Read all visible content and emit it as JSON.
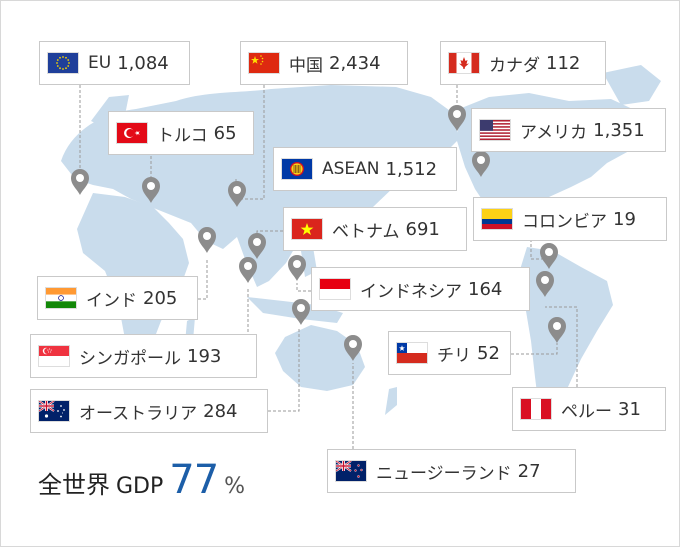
{
  "labels": {
    "eu": {
      "name": "EU",
      "value": "1,084",
      "flag": "eu-flag-icon"
    },
    "china": {
      "name": "中国",
      "value": "2,434",
      "flag": "china-flag-icon"
    },
    "canada": {
      "name": "カナダ",
      "value": "112",
      "flag": "canada-flag-icon"
    },
    "turkey": {
      "name": "トルコ",
      "value": "65",
      "flag": "turkey-flag-icon"
    },
    "usa": {
      "name": "アメリカ",
      "value": "1,351",
      "flag": "usa-flag-icon"
    },
    "asean": {
      "name": "ASEAN",
      "value": "1,512",
      "flag": "asean-flag-icon"
    },
    "vietnam": {
      "name": "ベトナム",
      "value": "691",
      "flag": "vietnam-flag-icon"
    },
    "colombia": {
      "name": "コロンビア",
      "value": "19",
      "flag": "colombia-flag-icon"
    },
    "india": {
      "name": "インド",
      "value": "205",
      "flag": "india-flag-icon"
    },
    "indonesia": {
      "name": "インドネシア",
      "value": "164",
      "flag": "indonesia-flag-icon"
    },
    "singapore": {
      "name": "シンガポール",
      "value": "193",
      "flag": "singapore-flag-icon"
    },
    "chile": {
      "name": "チリ",
      "value": "52",
      "flag": "chile-flag-icon"
    },
    "australia": {
      "name": "オーストラリア",
      "value": "284",
      "flag": "australia-flag-icon"
    },
    "peru": {
      "name": "ペルー",
      "value": "31",
      "flag": "peru-flag-icon"
    },
    "newzealand": {
      "name": "ニュージーランド",
      "value": "27",
      "flag": "new-zealand-flag-icon"
    }
  },
  "summary": {
    "label": "全世界",
    "metric": "GDP",
    "value": "77",
    "unit": "%"
  },
  "colors": {
    "land": "#c9dcec",
    "pin": "#8c8c8c",
    "leader": "#9a9a9a",
    "accent": "#1c5ea8",
    "border": "#c9c9c9"
  },
  "icons": {
    "pin": "map-pin-icon"
  }
}
